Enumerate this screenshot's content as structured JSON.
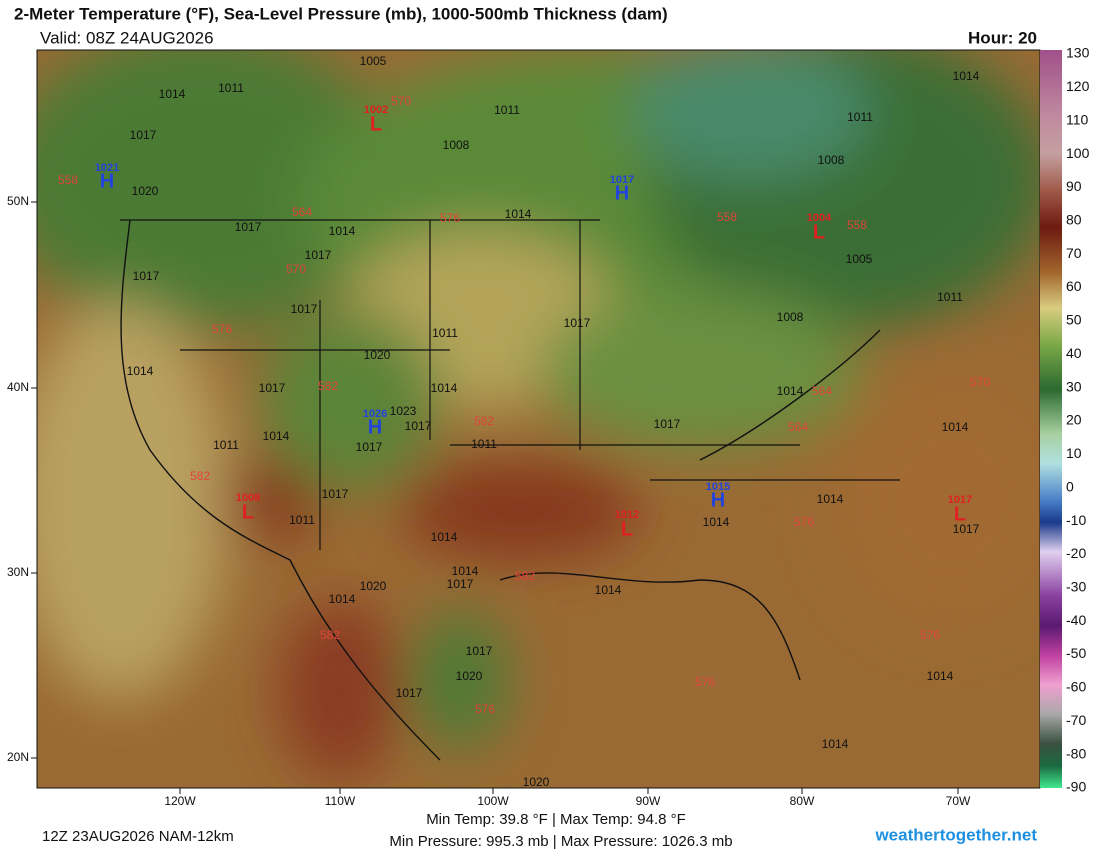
{
  "header": {
    "title": "2-Meter Temperature (°F), Sea-Level Pressure (mb), 1000-500mb Thickness (dam)",
    "valid": "Valid: 08Z 24AUG2026",
    "hour": "Hour: 20"
  },
  "map": {
    "longitudes": [
      "120W",
      "110W",
      "100W",
      "90W",
      "80W",
      "70W"
    ],
    "latitudes": [
      "50N",
      "40N",
      "30N",
      "20N"
    ],
    "isobars": [
      1005,
      1014,
      1011,
      1017,
      1020,
      1011,
      1008,
      1014,
      1014,
      1011,
      1008,
      1005,
      1011,
      1008,
      1017,
      1014,
      1017,
      1017,
      1017,
      1011,
      1017,
      1014,
      1020,
      1017,
      1014,
      1023,
      1017,
      1011,
      1014,
      1017,
      1011,
      1017,
      1014,
      1014,
      1017,
      1011,
      1014,
      1014,
      1017,
      1014,
      1020,
      1014,
      1014,
      1017,
      1014,
      1017,
      1020,
      1017,
      1014,
      1014,
      1020
    ],
    "thickness": [
      558,
      564,
      570,
      576,
      570,
      576,
      582,
      582,
      582,
      558,
      558,
      564,
      564,
      570,
      576,
      582,
      582,
      576,
      576,
      576
    ],
    "highs": [
      {
        "pressure": 1021,
        "label": "H"
      },
      {
        "pressure": 1017,
        "label": "H"
      },
      {
        "pressure": 1026,
        "label": "H"
      },
      {
        "pressure": 1015,
        "label": "H"
      }
    ],
    "lows": [
      {
        "pressure": 1002,
        "label": "L"
      },
      {
        "pressure": 1004,
        "label": "L"
      },
      {
        "pressure": 1008,
        "label": "L"
      },
      {
        "pressure": 1012,
        "label": "L"
      },
      {
        "pressure": 1017,
        "label": "L"
      }
    ]
  },
  "colorbar": {
    "labels": [
      130,
      120,
      110,
      100,
      90,
      80,
      70,
      60,
      50,
      40,
      30,
      20,
      10,
      0,
      -10,
      -20,
      -30,
      -40,
      -50,
      -60,
      -70,
      -80,
      -90
    ]
  },
  "footer": {
    "run": "12Z 23AUG2026 NAM-12km",
    "temps": "Min Temp:  39.8 °F | Max Temp:  94.8 °F",
    "pressures": "Min Pressure: 995.3 mb | Max Pressure: 1026.3 mb",
    "site": "weathertogether.net"
  }
}
